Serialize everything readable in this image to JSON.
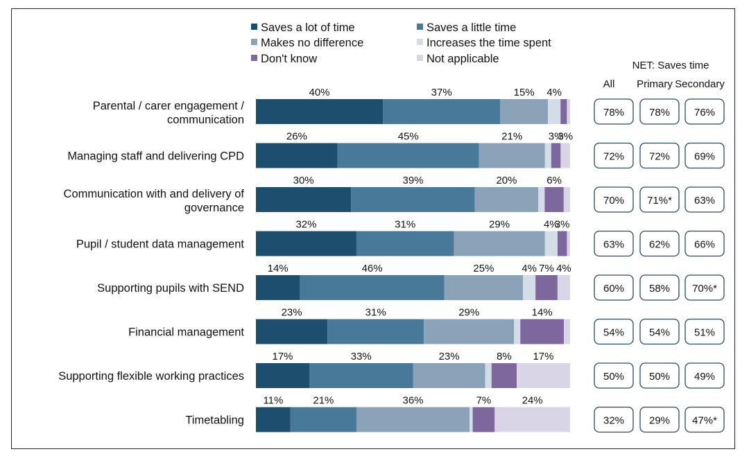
{
  "chart_data": {
    "type": "bar",
    "orientation": "horizontal",
    "stacked": true,
    "legend_placement": "top",
    "series": [
      {
        "name": "Saves a lot of time",
        "color": "#1d4e6e"
      },
      {
        "name": "Saves a little time",
        "color": "#497998"
      },
      {
        "name": "Makes no difference",
        "color": "#8aa3b8"
      },
      {
        "name": "Increases the time spent",
        "color": "#d3dde8"
      },
      {
        "name": "Don't know",
        "color": "#7e679c"
      },
      {
        "name": "Not applicable",
        "color": "#dad5e6"
      }
    ],
    "categories": [
      {
        "label": [
          "Parental / carer engagement /",
          "communication"
        ],
        "values": [
          40,
          37,
          15,
          4,
          2,
          1
        ],
        "labels": [
          "40%",
          "37%",
          "15%",
          "4%",
          "",
          ""
        ],
        "net": [
          "78%",
          "78%",
          "76%"
        ]
      },
      {
        "label": [
          "Managing staff and delivering CPD"
        ],
        "values": [
          26,
          45,
          21,
          2,
          3,
          3
        ],
        "labels": [
          "26%",
          "45%",
          "21%",
          "",
          "3%",
          "3%"
        ],
        "net": [
          "72%",
          "72%",
          "69%"
        ]
      },
      {
        "label": [
          "Communication with and delivery of",
          "governance"
        ],
        "values": [
          30,
          39,
          20,
          2,
          6,
          2
        ],
        "labels": [
          "30%",
          "39%",
          "20%",
          "",
          "6%",
          ""
        ],
        "net": [
          "70%",
          "71%*",
          "63%"
        ]
      },
      {
        "label": [
          "Pupil / student data management"
        ],
        "values": [
          32,
          31,
          29,
          4,
          3,
          1
        ],
        "labels": [
          "32%",
          "31%",
          "29%",
          "4%",
          "3%",
          ""
        ],
        "net": [
          "63%",
          "62%",
          "66%"
        ]
      },
      {
        "label": [
          "Supporting pupils with SEND"
        ],
        "values": [
          14,
          46,
          25,
          4,
          7,
          4
        ],
        "labels": [
          "14%",
          "46%",
          "25%",
          "4%",
          "7%",
          "4%"
        ],
        "net": [
          "60%",
          "58%",
          "70%*"
        ]
      },
      {
        "label": [
          "Financial management"
        ],
        "values": [
          23,
          31,
          29,
          2,
          14,
          2
        ],
        "labels": [
          "23%",
          "31%",
          "29%",
          "",
          "14%",
          ""
        ],
        "net": [
          "54%",
          "54%",
          "51%"
        ]
      },
      {
        "label": [
          "Supporting flexible working practices"
        ],
        "values": [
          17,
          33,
          23,
          2,
          8,
          17
        ],
        "labels": [
          "17%",
          "33%",
          "23%",
          "",
          "8%",
          "17%"
        ],
        "net": [
          "50%",
          "50%",
          "49%"
        ]
      },
      {
        "label": [
          "Timetabling"
        ],
        "values": [
          11,
          21,
          36,
          1,
          7,
          24
        ],
        "labels": [
          "11%",
          "21%",
          "36%",
          "",
          "7%",
          "24%"
        ],
        "net": [
          "32%",
          "29%",
          "47%*"
        ]
      }
    ],
    "xlim": [
      0,
      100
    ],
    "net_table": {
      "title": "NET: Saves time",
      "columns": [
        "All",
        "Primary",
        "Secondary"
      ]
    }
  }
}
